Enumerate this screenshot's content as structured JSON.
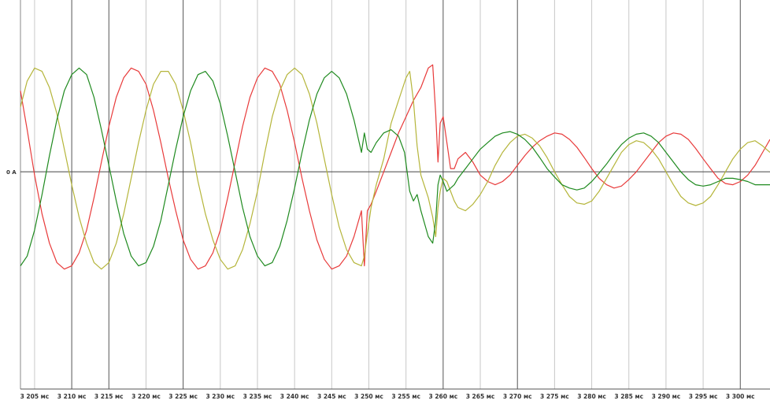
{
  "chart_data": {
    "type": "line",
    "xlabel": "",
    "ylabel": "",
    "grid": true,
    "legend": "none",
    "x_unit": "мс",
    "xlim": [
      3203.1,
      3304
    ],
    "ylim": [
      -3.35,
      2.65
    ],
    "zero_label": "0 A",
    "x_ticks": [
      {
        "value": 3205,
        "label": "3 205 мс"
      },
      {
        "value": 3210,
        "label": "3 210 мс"
      },
      {
        "value": 3215,
        "label": "3 215 мс"
      },
      {
        "value": 3220,
        "label": "3 220 мс"
      },
      {
        "value": 3225,
        "label": "3 225 мс"
      },
      {
        "value": 3230,
        "label": "3 230 мс"
      },
      {
        "value": 3235,
        "label": "3 235 мс"
      },
      {
        "value": 3240,
        "label": "3 240 мс"
      },
      {
        "value": 3245,
        "label": "3 245 мс"
      },
      {
        "value": 3250,
        "label": "3 250 мс"
      },
      {
        "value": 3255,
        "label": "3 255 мс"
      },
      {
        "value": 3260,
        "label": "3 260 мс"
      },
      {
        "value": 3265,
        "label": "3 265 мс"
      },
      {
        "value": 3270,
        "label": "3 270 мс"
      },
      {
        "value": 3275,
        "label": "3 275 мс"
      },
      {
        "value": 3280,
        "label": "3 280 мс"
      },
      {
        "value": 3285,
        "label": "3 285 мс"
      },
      {
        "value": 3290,
        "label": "3 290 мс"
      },
      {
        "value": 3295,
        "label": "3 295 мс"
      },
      {
        "value": 3300,
        "label": "3 300 мс"
      }
    ],
    "major_gridlines_x": [
      3210,
      3215,
      3225,
      3260,
      3270,
      3300
    ],
    "series": [
      {
        "color": "#e83a3a",
        "x": [
          3203.1,
          3204.0,
          3205.0,
          3206.0,
          3207.0,
          3208.0,
          3209.0,
          3210.0,
          3211.0,
          3212.0,
          3213.0,
          3214.0,
          3215.0,
          3216.0,
          3217.0,
          3218.0,
          3219.0,
          3220.0,
          3221.0,
          3222.0,
          3223.0,
          3224.0,
          3225.0,
          3226.0,
          3227.0,
          3228.0,
          3229.0,
          3230.0,
          3231.0,
          3232.0,
          3233.0,
          3234.0,
          3235.0,
          3236.0,
          3237.0,
          3238.0,
          3239.0,
          3240.0,
          3241.0,
          3242.0,
          3243.0,
          3244.0,
          3245.0,
          3246.0,
          3247.0,
          3248.0,
          3249.0,
          3249.4,
          3249.8,
          3250.3,
          3251.0,
          3252.0,
          3253.0,
          3254.0,
          3255.0,
          3256.0,
          3257.0,
          3258.0,
          3258.6,
          3259.0,
          3259.3,
          3259.6,
          3260.0,
          3260.5,
          3261.0,
          3261.5,
          3262.0,
          3263.0,
          3264.0,
          3265.0,
          3266.0,
          3267.0,
          3268.0,
          3269.0,
          3270.0,
          3271.0,
          3272.0,
          3273.0,
          3274.0,
          3275.0,
          3276.0,
          3277.0,
          3278.0,
          3279.0,
          3280.0,
          3281.0,
          3282.0,
          3283.0,
          3284.0,
          3285.0,
          3286.0,
          3287.0,
          3288.0,
          3289.0,
          3290.0,
          3291.0,
          3292.0,
          3293.0,
          3294.0,
          3295.0,
          3296.0,
          3297.0,
          3298.0,
          3299.0,
          3300.0,
          3301.0,
          3302.0,
          3303.0,
          3304.0
        ],
        "values": [
          1.25,
          0.65,
          -0.05,
          -0.65,
          -1.1,
          -1.4,
          -1.5,
          -1.45,
          -1.25,
          -0.9,
          -0.4,
          0.15,
          0.7,
          1.15,
          1.45,
          1.6,
          1.55,
          1.35,
          0.95,
          0.45,
          -0.1,
          -0.6,
          -1.05,
          -1.35,
          -1.5,
          -1.45,
          -1.25,
          -0.9,
          -0.4,
          0.15,
          0.7,
          1.15,
          1.45,
          1.6,
          1.55,
          1.35,
          0.95,
          0.45,
          -0.1,
          -0.6,
          -1.05,
          -1.35,
          -1.5,
          -1.45,
          -1.3,
          -1.0,
          -0.6,
          -1.45,
          -0.6,
          -0.5,
          -0.3,
          0.0,
          0.3,
          0.6,
          0.85,
          1.1,
          1.3,
          1.6,
          1.65,
          0.9,
          0.15,
          0.75,
          0.85,
          0.45,
          0.05,
          0.05,
          0.2,
          0.3,
          0.15,
          -0.05,
          -0.15,
          -0.2,
          -0.15,
          -0.05,
          0.1,
          0.25,
          0.38,
          0.48,
          0.55,
          0.6,
          0.58,
          0.5,
          0.38,
          0.22,
          0.05,
          -0.1,
          -0.2,
          -0.25,
          -0.22,
          -0.12,
          0.0,
          0.15,
          0.3,
          0.45,
          0.55,
          0.6,
          0.58,
          0.5,
          0.36,
          0.2,
          0.05,
          -0.1,
          -0.18,
          -0.2,
          -0.15,
          -0.05,
          0.1,
          0.3,
          0.5
        ]
      },
      {
        "color": "#b5b53a",
        "x": [
          3203.1,
          3204.0,
          3205.0,
          3206.0,
          3207.0,
          3208.0,
          3209.0,
          3210.0,
          3211.0,
          3212.0,
          3213.0,
          3214.0,
          3215.0,
          3216.0,
          3217.0,
          3218.0,
          3219.0,
          3220.0,
          3221.0,
          3222.0,
          3223.0,
          3224.0,
          3225.0,
          3226.0,
          3227.0,
          3228.0,
          3229.0,
          3230.0,
          3231.0,
          3232.0,
          3233.0,
          3234.0,
          3235.0,
          3236.0,
          3237.0,
          3238.0,
          3239.0,
          3240.0,
          3241.0,
          3242.0,
          3243.0,
          3244.0,
          3245.0,
          3246.0,
          3247.0,
          3248.0,
          3249.0,
          3249.4,
          3249.8,
          3250.3,
          3251.0,
          3252.0,
          3253.0,
          3254.0,
          3255.0,
          3255.5,
          3256.0,
          3256.5,
          3257.0,
          3258.0,
          3258.6,
          3259.0,
          3259.3,
          3259.6,
          3260.0,
          3260.5,
          3261.0,
          3261.5,
          3262.0,
          3263.0,
          3264.0,
          3265.0,
          3266.0,
          3267.0,
          3268.0,
          3269.0,
          3270.0,
          3271.0,
          3272.0,
          3273.0,
          3274.0,
          3275.0,
          3276.0,
          3277.0,
          3278.0,
          3279.0,
          3280.0,
          3281.0,
          3282.0,
          3283.0,
          3284.0,
          3285.0,
          3286.0,
          3287.0,
          3288.0,
          3289.0,
          3290.0,
          3291.0,
          3292.0,
          3293.0,
          3294.0,
          3295.0,
          3296.0,
          3297.0,
          3298.0,
          3299.0,
          3300.0,
          3301.0,
          3302.0,
          3303.0,
          3304.0
        ],
        "values": [
          1.0,
          1.4,
          1.6,
          1.55,
          1.3,
          0.9,
          0.35,
          -0.2,
          -0.7,
          -1.1,
          -1.4,
          -1.5,
          -1.4,
          -1.1,
          -0.65,
          -0.1,
          0.45,
          0.95,
          1.35,
          1.55,
          1.55,
          1.35,
          0.95,
          0.45,
          -0.15,
          -0.65,
          -1.05,
          -1.35,
          -1.5,
          -1.45,
          -1.2,
          -0.8,
          -0.3,
          0.3,
          0.85,
          1.25,
          1.5,
          1.6,
          1.5,
          1.2,
          0.75,
          0.2,
          -0.35,
          -0.85,
          -1.2,
          -1.4,
          -1.45,
          -1.3,
          -0.95,
          -0.55,
          -0.2,
          0.2,
          0.75,
          1.1,
          1.45,
          1.55,
          1.1,
          0.4,
          -0.05,
          -0.4,
          -0.7,
          -1.0,
          -0.55,
          -0.3,
          -0.1,
          -0.15,
          -0.3,
          -0.45,
          -0.55,
          -0.6,
          -0.5,
          -0.35,
          -0.15,
          0.1,
          0.3,
          0.45,
          0.55,
          0.58,
          0.52,
          0.4,
          0.22,
          0.0,
          -0.2,
          -0.38,
          -0.48,
          -0.5,
          -0.45,
          -0.3,
          -0.1,
          0.1,
          0.3,
          0.42,
          0.48,
          0.45,
          0.35,
          0.2,
          0.0,
          -0.2,
          -0.38,
          -0.48,
          -0.52,
          -0.48,
          -0.38,
          -0.2,
          0.0,
          0.2,
          0.35,
          0.45,
          0.48,
          0.4,
          0.3
        ]
      },
      {
        "color": "#1f8a1f",
        "x": [
          3203.1,
          3204.0,
          3205.0,
          3206.0,
          3207.0,
          3208.0,
          3209.0,
          3210.0,
          3211.0,
          3212.0,
          3213.0,
          3214.0,
          3215.0,
          3216.0,
          3217.0,
          3218.0,
          3219.0,
          3220.0,
          3221.0,
          3222.0,
          3223.0,
          3224.0,
          3225.0,
          3226.0,
          3227.0,
          3228.0,
          3229.0,
          3230.0,
          3231.0,
          3232.0,
          3233.0,
          3234.0,
          3235.0,
          3236.0,
          3237.0,
          3238.0,
          3239.0,
          3240.0,
          3241.0,
          3242.0,
          3243.0,
          3244.0,
          3245.0,
          3246.0,
          3247.0,
          3248.0,
          3249.0,
          3249.4,
          3249.8,
          3250.3,
          3251.0,
          3252.0,
          3253.0,
          3254.0,
          3254.8,
          3255.5,
          3256.0,
          3256.5,
          3257.0,
          3258.0,
          3258.6,
          3259.0,
          3259.3,
          3259.6,
          3260.0,
          3260.5,
          3261.0,
          3261.5,
          3262.0,
          3263.0,
          3264.0,
          3265.0,
          3266.0,
          3267.0,
          3268.0,
          3269.0,
          3270.0,
          3271.0,
          3272.0,
          3273.0,
          3274.0,
          3275.0,
          3276.0,
          3277.0,
          3278.0,
          3279.0,
          3280.0,
          3281.0,
          3282.0,
          3283.0,
          3284.0,
          3285.0,
          3286.0,
          3287.0,
          3288.0,
          3289.0,
          3290.0,
          3291.0,
          3292.0,
          3293.0,
          3294.0,
          3295.0,
          3296.0,
          3297.0,
          3298.0,
          3299.0,
          3300.0,
          3301.0,
          3302.0,
          3303.0,
          3304.0
        ],
        "values": [
          -1.45,
          -1.3,
          -0.9,
          -0.35,
          0.25,
          0.8,
          1.25,
          1.5,
          1.6,
          1.5,
          1.15,
          0.65,
          0.1,
          -0.45,
          -0.95,
          -1.3,
          -1.45,
          -1.4,
          -1.15,
          -0.75,
          -0.2,
          0.35,
          0.85,
          1.25,
          1.5,
          1.55,
          1.4,
          1.05,
          0.55,
          0.0,
          -0.55,
          -1.0,
          -1.3,
          -1.45,
          -1.4,
          -1.15,
          -0.75,
          -0.25,
          0.3,
          0.8,
          1.2,
          1.45,
          1.55,
          1.45,
          1.2,
          0.8,
          0.3,
          0.6,
          0.35,
          0.3,
          0.45,
          0.6,
          0.65,
          0.55,
          0.3,
          -0.3,
          -0.45,
          -0.35,
          -0.6,
          -1.0,
          -1.1,
          -0.75,
          -0.2,
          -0.05,
          -0.15,
          -0.3,
          -0.25,
          -0.2,
          -0.1,
          0.05,
          0.2,
          0.35,
          0.45,
          0.55,
          0.6,
          0.62,
          0.58,
          0.5,
          0.38,
          0.22,
          0.05,
          -0.08,
          -0.2,
          -0.25,
          -0.28,
          -0.25,
          -0.15,
          -0.02,
          0.12,
          0.28,
          0.42,
          0.52,
          0.58,
          0.6,
          0.55,
          0.45,
          0.3,
          0.15,
          0.0,
          -0.12,
          -0.2,
          -0.22,
          -0.2,
          -0.15,
          -0.1,
          -0.1,
          -0.12,
          -0.15,
          -0.2,
          -0.2,
          -0.2
        ]
      }
    ]
  }
}
